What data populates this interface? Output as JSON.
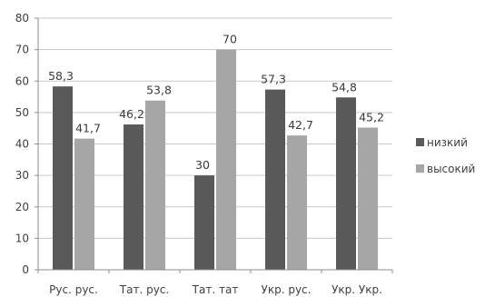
{
  "chart_data": {
    "type": "bar",
    "categories": [
      "Рус. рус.",
      "Тат. рус.",
      "Тат. тат",
      "Укр. рус.",
      "Укр. Укр."
    ],
    "series": [
      {
        "name": "низкий",
        "values": [
          58.3,
          46.2,
          30,
          57.3,
          54.8
        ],
        "labels": [
          "58,3",
          "46,2",
          "30",
          "57,3",
          "54,8"
        ],
        "color": "#595959"
      },
      {
        "name": "высокий",
        "values": [
          41.7,
          53.8,
          70,
          42.7,
          45.2
        ],
        "labels": [
          "41,7",
          "53,8",
          "70",
          "42,7",
          "45,2"
        ],
        "color": "#a6a6a6"
      }
    ],
    "ylim": [
      0,
      80
    ],
    "yticks": [
      0,
      10,
      20,
      30,
      40,
      50,
      60,
      70,
      80
    ],
    "grid": true,
    "legend": "right"
  }
}
